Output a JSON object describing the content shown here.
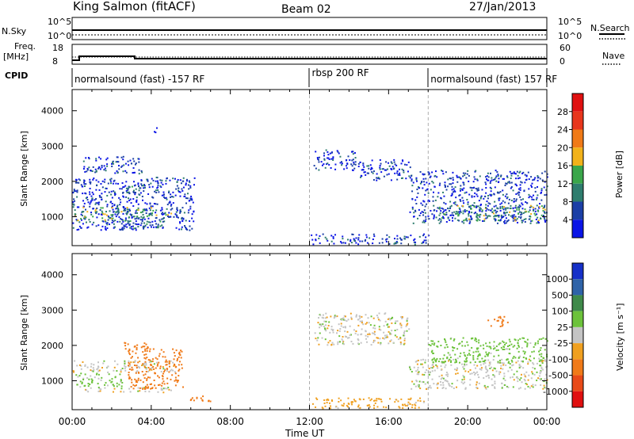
{
  "header": {
    "station": "King Salmon (fitACF)",
    "beam": "Beam 02",
    "date": "27/Jan/2013"
  },
  "strip_labels": {
    "nsky": "N.Sky",
    "nsearch": "N.Search",
    "freq_line1": "Freq.",
    "freq_line2": "[MHz]",
    "nave": "Nave",
    "cpid": "CPID",
    "nsky_top": "10^5",
    "nsky_bottom": "10^0",
    "nsearch_top": "10^5",
    "nsearch_bottom": "10^0",
    "freq_top": "18",
    "freq_bottom": "8",
    "nave_top": "60",
    "nave_bottom": "0"
  },
  "cpid_segments": [
    {
      "label": "normalsound (fast) -157 RF",
      "start_hour": 0
    },
    {
      "label": "rbsp 200 RF",
      "start_hour": 12
    },
    {
      "label": "normalsound (fast) 157 RF",
      "start_hour": 18
    }
  ],
  "x_axis": {
    "label": "Time UT",
    "ticks": [
      "00:00",
      "04:00",
      "08:00",
      "12:00",
      "16:00",
      "20:00",
      "00:00"
    ],
    "range_hours": [
      0,
      24
    ]
  },
  "y_axis": {
    "label": "Slant Range [km]",
    "ticks": [
      "1000",
      "2000",
      "3000",
      "4000"
    ],
    "range_km": [
      180,
      4600
    ]
  },
  "power_scale": {
    "label": "Power [dB]",
    "ticks": [
      "4",
      "8",
      "12",
      "16",
      "20",
      "24",
      "28"
    ],
    "colors": [
      "#0a14e6",
      "#1b3fa6",
      "#2e7d6e",
      "#3aa64a",
      "#f2b21a",
      "#f07a17",
      "#e8361c",
      "#e01010"
    ]
  },
  "velocity_scale": {
    "label": "Velocity [m s⁻¹]",
    "ticks": [
      "1000",
      "500",
      "100",
      "25",
      "-25",
      "-100",
      "-500",
      "-1000"
    ],
    "colors": [
      "#1530c8",
      "#2f63a8",
      "#3f8a4a",
      "#6cc23b",
      "#c4c4c4",
      "#f0a020",
      "#f07a18",
      "#e84a18",
      "#e01010"
    ]
  },
  "chart_data": [
    {
      "type": "heatmap",
      "title": "",
      "quantity": "Power [dB]",
      "xlabel": "",
      "ylabel": "Slant Range [km]",
      "xlim_hours": [
        0,
        24
      ],
      "ylim_km": [
        180,
        4600
      ],
      "regions": [
        {
          "x0": 0.0,
          "x1": 6.2,
          "y0": 600,
          "y1": 2100,
          "level": 8
        },
        {
          "x0": 0.1,
          "x1": 5.0,
          "y0": 850,
          "y1": 1250,
          "level": 16
        },
        {
          "x0": 2.5,
          "x1": 4.6,
          "y0": 650,
          "y1": 850,
          "level": 12
        },
        {
          "x0": 2.5,
          "x1": 3.6,
          "y0": 1650,
          "y1": 1900,
          "level": 12
        },
        {
          "x0": 0.5,
          "x1": 3.5,
          "y0": 2200,
          "y1": 2700,
          "level": 8
        },
        {
          "x0": 4.0,
          "x1": 4.4,
          "y0": 3350,
          "y1": 3500,
          "level": 8
        },
        {
          "x0": 12.2,
          "x1": 14.3,
          "y0": 2300,
          "y1": 2900,
          "level": 8
        },
        {
          "x0": 14.4,
          "x1": 17.1,
          "y0": 2000,
          "y1": 2600,
          "level": 8
        },
        {
          "x0": 17.0,
          "x1": 24.0,
          "y0": 800,
          "y1": 2300,
          "level": 8
        },
        {
          "x0": 18.5,
          "x1": 24.0,
          "y0": 850,
          "y1": 1300,
          "level": 16
        },
        {
          "x0": 12.0,
          "x1": 18.0,
          "y0": 200,
          "y1": 500,
          "level": 8
        }
      ]
    },
    {
      "type": "heatmap",
      "title": "",
      "quantity": "Velocity [m s⁻¹]",
      "xlabel": "Time UT",
      "ylabel": "Slant Range [km]",
      "xlim_hours": [
        0,
        24
      ],
      "ylim_km": [
        180,
        4600
      ],
      "regions": [
        {
          "x0": 0.0,
          "x1": 5.2,
          "y0": 1200,
          "y1": 1550,
          "v": 0
        },
        {
          "x0": 0.6,
          "x1": 5.0,
          "y0": 650,
          "y1": 800,
          "v": 0
        },
        {
          "x0": 2.8,
          "x1": 5.6,
          "y0": 750,
          "y1": 1900,
          "v": -200
        },
        {
          "x0": 2.6,
          "x1": 3.8,
          "y0": 1850,
          "y1": 2100,
          "v": -200
        },
        {
          "x0": 0.0,
          "x1": 2.5,
          "y0": 800,
          "y1": 1200,
          "v": 50
        },
        {
          "x0": 12.2,
          "x1": 17.0,
          "y0": 2000,
          "y1": 2900,
          "v": 0
        },
        {
          "x0": 17.0,
          "x1": 24.0,
          "y0": 750,
          "y1": 1600,
          "v": 0
        },
        {
          "x0": 18.0,
          "x1": 24.0,
          "y0": 1500,
          "y1": 2200,
          "v": 60
        },
        {
          "x0": 21.0,
          "x1": 22.0,
          "y0": 2500,
          "y1": 2800,
          "v": -200
        },
        {
          "x0": 12.0,
          "x1": 18.0,
          "y0": 200,
          "y1": 500,
          "v": -60
        },
        {
          "x0": 5.8,
          "x1": 7.0,
          "y0": 400,
          "y1": 600,
          "v": -200
        }
      ]
    }
  ]
}
